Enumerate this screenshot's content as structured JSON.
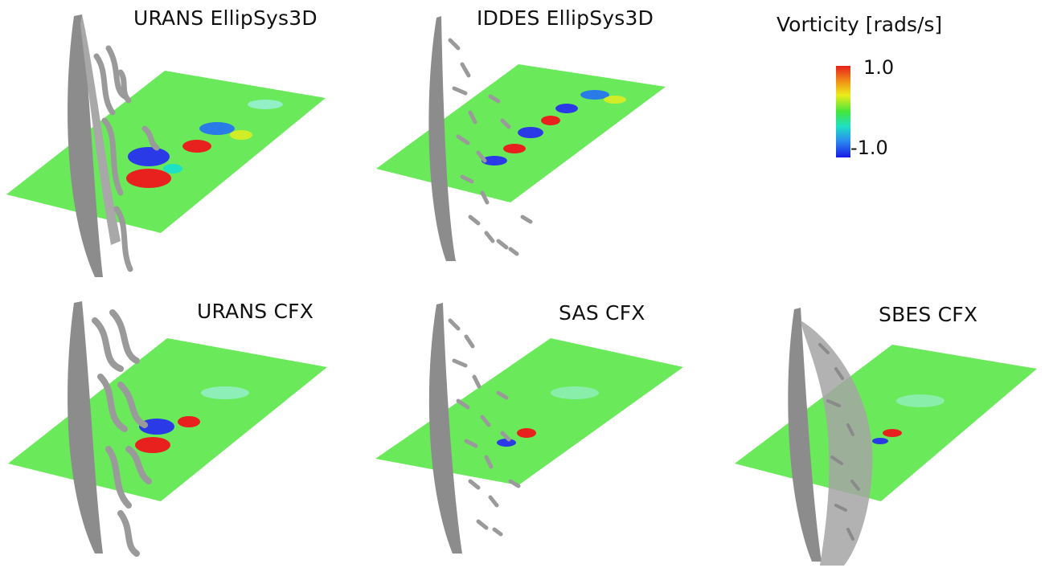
{
  "panels": [
    {
      "title": "URANS EllipSys3D"
    },
    {
      "title": "IDDES EllipSys3D"
    },
    {
      "title": "URANS CFX"
    },
    {
      "title": "SAS CFX"
    },
    {
      "title": "SBES CFX"
    }
  ],
  "legend": {
    "title": "Vorticity [rads/s]",
    "max_label": "1.0",
    "min_label": "-1.0",
    "colors": [
      "#e8201e",
      "#ecec1c",
      "#44e63a",
      "#1ee0c4",
      "#1a1ae6"
    ]
  },
  "colors": {
    "plane": "#6aea5a",
    "isosurface": "#9a9a9a"
  }
}
